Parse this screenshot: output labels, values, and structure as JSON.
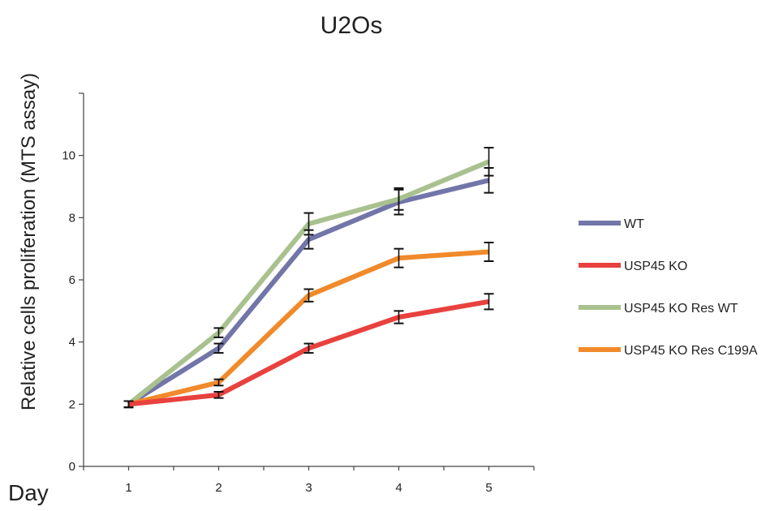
{
  "chart_data": {
    "type": "line",
    "title": "U2Os",
    "xlabel": "Day",
    "ylabel": "Relative cells proliferation (MTS assay)",
    "x": [
      1,
      2,
      3,
      4,
      5
    ],
    "xlim": [
      0.5,
      5.5
    ],
    "ylim": [
      0,
      12
    ],
    "y_ticks": [
      0,
      2,
      4,
      6,
      8,
      10
    ],
    "y_tick_labels": [
      "0",
      "2",
      "4",
      "6",
      "8",
      "10"
    ],
    "x_tick_labels": [
      "1",
      "2",
      "3",
      "4",
      "5"
    ],
    "legend_position": "right",
    "grid": false,
    "series": [
      {
        "name": "WT",
        "color": "#7275a8",
        "values": [
          2.0,
          3.8,
          7.3,
          8.5,
          9.2
        ],
        "errors": [
          0.1,
          0.15,
          0.3,
          0.4,
          0.4
        ]
      },
      {
        "name": "USP45 KO",
        "color": "#e8413e",
        "values": [
          2.0,
          2.3,
          3.8,
          4.8,
          5.3
        ],
        "errors": [
          0.1,
          0.1,
          0.15,
          0.2,
          0.25
        ]
      },
      {
        "name": "USP45 KO Res WT",
        "color": "#a9c18e",
        "values": [
          2.0,
          4.3,
          7.8,
          8.6,
          9.8
        ],
        "errors": [
          0.1,
          0.15,
          0.35,
          0.35,
          0.45
        ]
      },
      {
        "name": "USP45 KO Res C199A",
        "color": "#f08a2a",
        "values": [
          2.0,
          2.7,
          5.5,
          6.7,
          6.9
        ],
        "errors": [
          0.1,
          0.1,
          0.2,
          0.3,
          0.3
        ]
      }
    ]
  }
}
